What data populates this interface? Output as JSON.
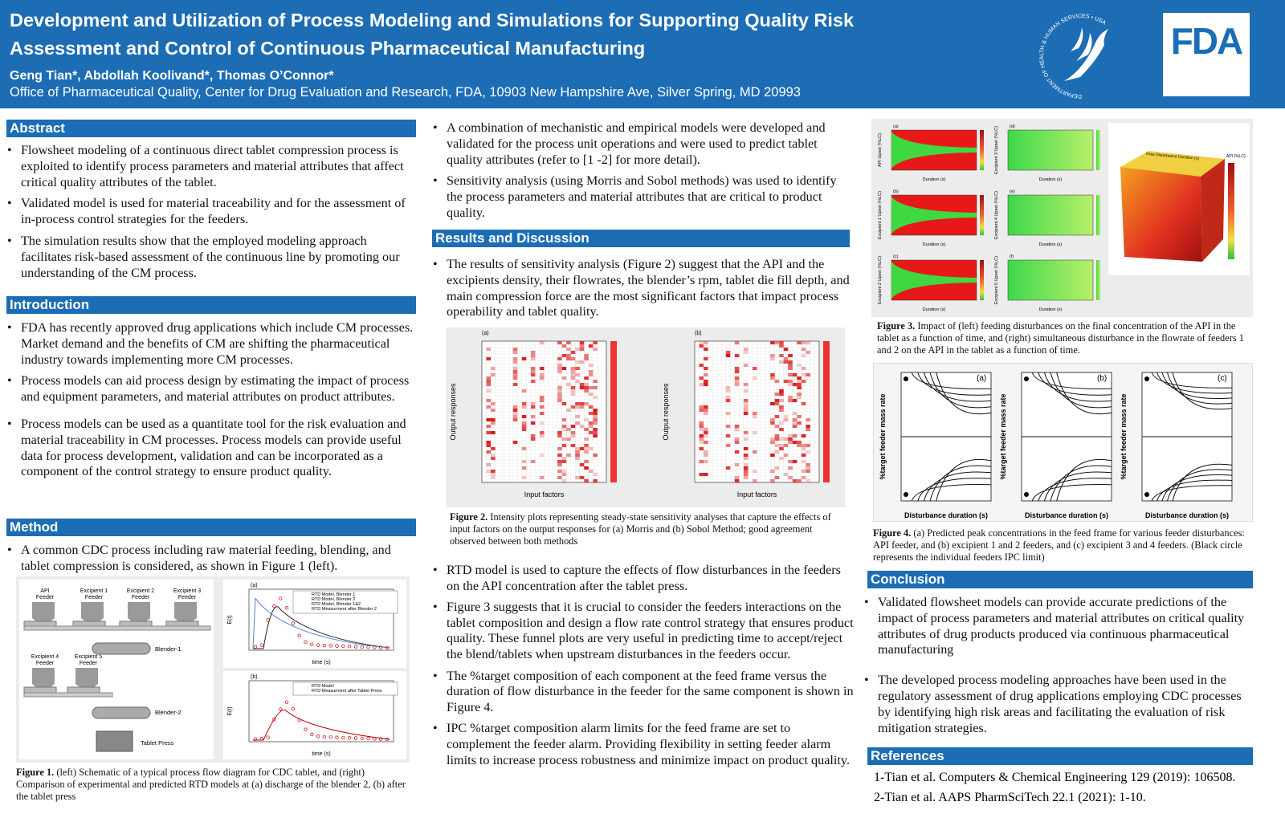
{
  "header": {
    "title": [
      "Development and Utilization of Process Modeling and Simulations for Supporting Quality Risk",
      "Assessment and Control of Continuous Pharmaceutical Manufacturing"
    ],
    "authors": "Geng Tian*, Abdollah Koolivand*, Thomas O’Connor*",
    "affiliation": "Office of Pharmaceutical Quality, Center for Drug Evaluation and Research, FDA, 10903 New Hampshire Ave, Silver Spring, MD 20993",
    "seal": "DEPARTMENT OF HEALTH & HUMAN SERVICES • USA",
    "logo": "FDA"
  },
  "abstract": {
    "heading": "Abstract",
    "bullets": [
      "Flowsheet modeling of a continuous direct tablet compression process is exploited to identify process parameters and material attributes that affect critical quality attributes of the tablet.",
      "Validated model is used for material traceability  and for the assessment of in-process control strategies for the feeders.",
      "The simulation results show that the employed modeling approach facilitates risk-based assessment of the continuous line by promoting our understanding of the CM process."
    ]
  },
  "introduction": {
    "heading": "Introduction",
    "bullets": [
      "FDA has recently approved drug applications which include CM processes. Market demand and the benefits of CM are shifting the pharmaceutical industry towards implementing more CM processes.",
      "Process models can aid process design by estimating the impact of process and equipment parameters, and material attributes on product attributes.",
      "Process models can be used as a quantitate tool for the risk evaluation and material traceability in CM processes. Process models can provide useful data for process development, validation and can be incorporated as a component of the control strategy to ensure product quality."
    ]
  },
  "method": {
    "heading": "Method",
    "bullets": [
      "A common CDC process including raw material feeding, blending, and tablet compression is considered, as shown in Figure 1 (left).",
      "A combination of mechanistic and empirical models were developed and validated for the process unit operations and were used to predict tablet quality attributes (refer to [1 -2] for more detail).",
      "Sensitivity analysis (using Morris and Sobol methods) was used to identify the process parameters and material attributes that are critical to product quality."
    ]
  },
  "results": {
    "heading": "Results and Discussion",
    "bullets": [
      "The results of sensitivity analysis (Figure 2) suggest that the API and the excipients density, their flowrates, the blender’s rpm, tablet die fill depth, and main compression force are the most significant factors that impact process operability and tablet quality.",
      "RTD model is used to capture the effects of flow disturbances in the feeders on the API concentration after the tablet press.",
      "Figure 3 suggests that it is crucial to consider the feeders interactions on the tablet composition and design a flow rate control strategy that ensures product quality. These funnel plots are very useful in predicting time to accept/reject the blend/tablets when upstream disturbances in the feeders occur.",
      "The %target composition of each component at the feed frame versus the duration of flow disturbance in the feeder for the same component is shown in Figure 4.",
      "IPC %target composition alarm limits for the feed frame are set to complement the feeder alarm. Providing flexibility in setting feeder alarm limits to increase process robustness and minimize impact on product quality."
    ]
  },
  "conclusion": {
    "heading": "Conclusion",
    "bullets": [
      "Validated flowsheet models can provide accurate predictions of the impact of process parameters and material attributes on critical quality attributes of drug products produced via continuous pharmaceutical manufacturing",
      "The developed process modeling approaches have been used in the regulatory assessment of drug applications employing CDC processes by identifying high risk areas and facilitating the evaluation of risk mitigation strategies."
    ]
  },
  "references": {
    "heading": "References",
    "items": [
      "1-Tian et al. Computers & Chemical Engineering 129 (2019): 106508.",
      "2-Tian et al. AAPS PharmSciTech 22.1 (2021): 1-10."
    ]
  },
  "figure1": {
    "label": "Figure 1.",
    "caption": "  (left) Schematic of a typical process flow diagram for CDC tablet, and (right) Comparison of experimental and predicted RTD models at (a) discharge of the blender 2, (b) after the tablet press",
    "feeders": [
      [
        "API",
        "Feeder"
      ],
      [
        "Excipient 1",
        "Feeder"
      ],
      [
        "Excipient 2",
        "Feeder"
      ],
      [
        "Excipient 3",
        "Feeder"
      ],
      [
        "Excipient 4",
        "Feeder"
      ],
      [
        "Excipient 5",
        "Feeder"
      ]
    ],
    "blender1": "Blender-1",
    "blender2": "Blender-2",
    "press": "Tablet Press",
    "panels": [
      "(a)",
      "(b)"
    ],
    "xlabel": "time (s)",
    "ylabel": "E(t)",
    "legend_a": [
      "RTD Model, Blender 1",
      "RTD Model, Blender 2",
      "RTD Model, Blender 1&2",
      "RTD Measurment after Blender 2"
    ],
    "legend_b": [
      "RTD Model",
      "RTD Measurment after Tablet Press"
    ]
  },
  "figure2": {
    "label": "Figure 2.",
    "caption": " Intensity plots representing steady-state sensitivity analyses that capture the effects of input factors on the output responses for (a) Morris and (b) Sobol Method; good agreement observed between both methods",
    "panels": [
      "(a)",
      "(b)"
    ],
    "ylabel": "Output responses",
    "xlabel": "Input factors"
  },
  "figure3": {
    "label": "Figure 3.",
    "caption": " Impact of (left) feeding disturbances on the final concentration of the API in the tablet as a function of time, and (right) simultaneous disturbance in the flowrate of feeders 1 and 2 on the API in the tablet as a function of time.",
    "panels": [
      "(a)",
      "(b)",
      "(c)",
      "(d)",
      "(e)",
      "(f)"
    ],
    "ylabels": [
      "API Upset (%LC)",
      "Excipient 1 Upset (%LC)",
      "Excipient 2 Upset (%LC)",
      "Excipient 3 Upset (%LC)",
      "Excipient 4 Upset (%LC)",
      "Excipient 5 Upset (%LC)"
    ],
    "xlabel": "Duration (s)",
    "cube_label": "Flow Disturbance Duration (s)",
    "cube_bar": "API (%LC)"
  },
  "figure4": {
    "label": "Figure 4.",
    "caption": " (a) Predicted peak concentrations in the feed frame for various feeder disturbances: API feeder, and (b) excipient 1 and 2 feeders, and (c) excipient 3 and 4 feeders. (Black circle represents the individual feeders IPC limit)",
    "panels": [
      "(a)",
      "(b)",
      "(c)"
    ],
    "ylabel": "%target feeder mass rate",
    "xlabel": "Disturbance duration (s)"
  }
}
